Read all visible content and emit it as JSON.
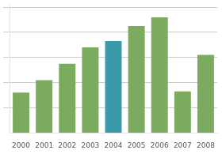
{
  "chart_data": {
    "type": "bar",
    "categories": [
      "2000",
      "2001",
      "2002",
      "2003",
      "2004",
      "2005",
      "2006",
      "2007",
      "2008"
    ],
    "values": [
      3.2,
      4.2,
      5.5,
      6.8,
      7.3,
      8.5,
      9.2,
      3.3,
      6.2
    ],
    "colors": [
      "#7aab5e",
      "#7aab5e",
      "#7aab5e",
      "#7aab5e",
      "#3a9aaa",
      "#7aab5e",
      "#7aab5e",
      "#7aab5e",
      "#7aab5e"
    ],
    "ylim": [
      0,
      10.2
    ],
    "yticks": [
      2,
      4,
      6,
      8,
      10
    ],
    "grid": true,
    "tick_labels": "x"
  }
}
